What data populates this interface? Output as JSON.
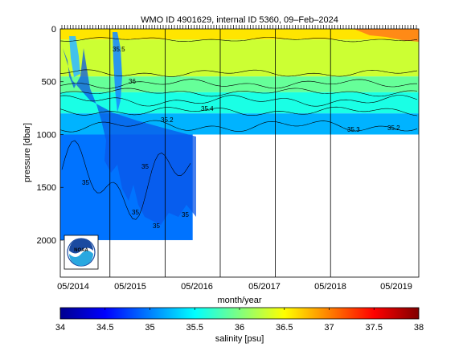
{
  "chart_data": {
    "type": "heatmap",
    "title": "WMO ID 4901629, internal ID 5360, 09–Feb–2024",
    "xlabel": "month/year",
    "ylabel": "pressure [dbar]",
    "x_tick_labels": [
      "05/2014",
      "05/2015",
      "05/2016",
      "05/2017",
      "05/2018",
      "05/2019"
    ],
    "x_range": [
      "2014-05",
      "2019-10"
    ],
    "y_ticks": [
      0,
      500,
      1000,
      1500,
      2000
    ],
    "y_range": [
      0,
      2350
    ],
    "y_reversed": true,
    "colorbar": {
      "label": "salinity [psu]",
      "ticks": [
        34,
        34.5,
        35,
        35.5,
        36,
        36.5,
        37,
        37.5,
        38
      ],
      "range": [
        34,
        38
      ],
      "colormap": "jet"
    },
    "profile_depth_changes": [
      {
        "period": "2014-05 to 2016-05",
        "max_pressure": 2000
      },
      {
        "period": "2016-05 to 2019-10",
        "max_pressure": 1000
      }
    ],
    "contour_labels": [
      "35",
      "35.5",
      "36",
      "35.4",
      "35.2",
      "35.3"
    ],
    "salinity_layers": [
      {
        "pressure_range": [
          0,
          100
        ],
        "salinity": 36.6
      },
      {
        "pressure_range": [
          100,
          450
        ],
        "salinity": 36.3
      },
      {
        "pressure_range": [
          450,
          600
        ],
        "salinity": 35.9
      },
      {
        "pressure_range": [
          600,
          800
        ],
        "salinity": 35.6
      },
      {
        "pressure_range": [
          800,
          1000
        ],
        "salinity": 35.2
      },
      {
        "pressure_range": [
          1000,
          2000
        ],
        "salinity": 34.95
      }
    ],
    "logo": "NOAA"
  }
}
